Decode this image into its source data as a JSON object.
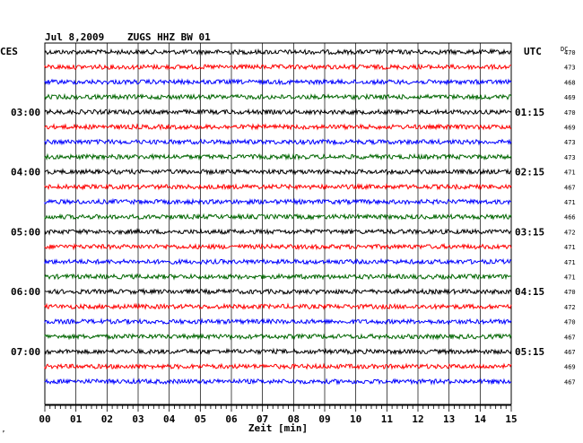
{
  "header": {
    "date": "Jul 8,2009",
    "station": "ZUGS HHZ BW 01",
    "left_tz": "CES",
    "right_tz": "UTC",
    "dc_label": "DC"
  },
  "chart_data": {
    "type": "line",
    "title": "Jul 8,2009  ZUGS HHZ BW 01",
    "xlabel": "Zeit [min]",
    "xlim": [
      0,
      15
    ],
    "x_ticks": [
      "00",
      "01",
      "02",
      "03",
      "04",
      "05",
      "06",
      "07",
      "08",
      "09",
      "10",
      "11",
      "12",
      "13",
      "14",
      "15"
    ],
    "trace_colors": [
      "#000000",
      "#ff0000",
      "#0000ff",
      "#006600"
    ],
    "left_hour_labels": [
      "03:00",
      "04:00",
      "05:00",
      "06:00",
      "07:00"
    ],
    "right_hour_labels": [
      "01:15",
      "02:15",
      "03:15",
      "04:15",
      "05:15"
    ],
    "left_hour_trace_index": [
      4,
      8,
      12,
      16,
      20
    ],
    "dc_values": [
      470,
      473,
      468,
      469,
      470,
      469,
      473,
      473,
      471,
      467,
      471,
      466,
      472,
      471,
      471,
      471,
      470,
      472,
      470,
      467,
      467,
      469,
      467
    ],
    "trace_count": 23
  },
  "footer": {
    "corner_mark": "ᴾ"
  }
}
